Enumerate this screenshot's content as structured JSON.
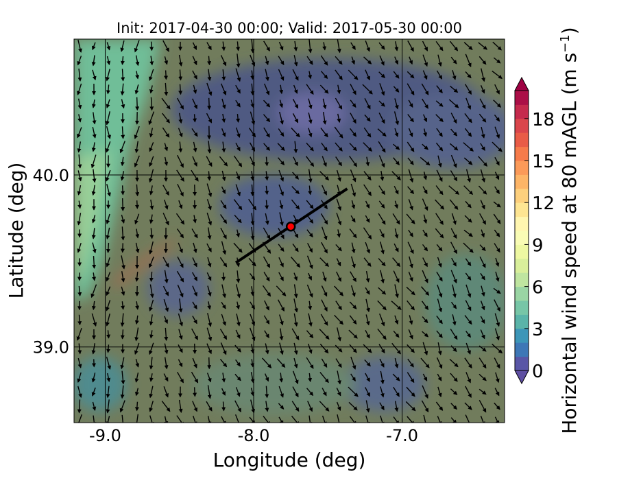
{
  "chart_data": {
    "type": "heatmap",
    "title": "Init: 2017-04-30 00:00; Valid: 2017-05-30 00:00",
    "xlabel": "Longitude (deg)",
    "ylabel": "Latitude (deg)",
    "xlim": [
      -9.21,
      -6.31
    ],
    "ylim": [
      38.56,
      40.79
    ],
    "xticks": [
      -9.0,
      -8.0,
      -7.0
    ],
    "xtick_labels": [
      "-9.0",
      "-8.0",
      "-7.0"
    ],
    "yticks": [
      39.0,
      40.0
    ],
    "ytick_labels": [
      "39.0",
      "40.0"
    ],
    "grid": true,
    "colorbar": {
      "label": "Horizontal wind speed at 80 mAGL (m s",
      "label_exponent": "−1",
      "label_close": ")",
      "levels_min": 0,
      "levels_max": 20,
      "level_step": 1,
      "ticks": [
        0,
        3,
        6,
        9,
        12,
        15,
        18
      ],
      "tick_labels": [
        "0",
        "3",
        "6",
        "9",
        "12",
        "15",
        "18"
      ],
      "extend": "both",
      "colors": [
        "#5956a6",
        "#3e77b6",
        "#3d96b8",
        "#5ab4a9",
        "#77c6a7",
        "#9ad5a4",
        "#bfe5a0",
        "#d9ef9b",
        "#eef8a2",
        "#f9fcb5",
        "#fff6b0",
        "#fee592",
        "#fdd07d",
        "#fdb567",
        "#fb9a59",
        "#f67b4a",
        "#e95c47",
        "#da464c",
        "#c52a4d",
        "#ab0f47"
      ],
      "under_color": "#5e4fa2",
      "over_color": "#9e0142"
    },
    "transect": {
      "start": [
        -8.12,
        39.49
      ],
      "end": [
        -7.37,
        39.92
      ],
      "color": "#000000"
    },
    "marker": {
      "lon": -7.75,
      "lat": 39.7,
      "color": "#ff0000"
    },
    "wind_vectors": "quiver field, predominantly southward/south-eastward"
  }
}
